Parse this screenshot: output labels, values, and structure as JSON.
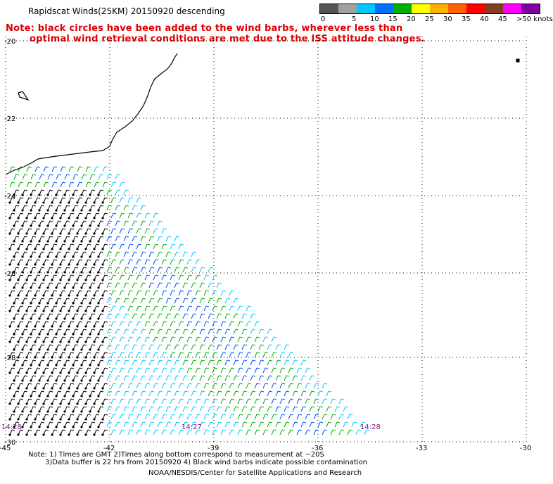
{
  "header": {
    "title": "Rapidscat Winds(25KM) 20150920 descending",
    "note_line1": "Note: black circles have been added to the wind barbs, wherever less than",
    "note_line2": "optimal wind retrieval conditions are met due to the ISS attitude changes."
  },
  "legend": {
    "colors": [
      "#555555",
      "#a0a0a0",
      "#00c8ff",
      "#0070ff",
      "#00b000",
      "#ffff00",
      "#ffb000",
      "#ff6000",
      "#ff0000",
      "#804020",
      "#ff00ff",
      "#8000a0"
    ],
    "labels": [
      "0",
      "5",
      "10",
      "15",
      "20",
      "25",
      "30",
      "35",
      "40",
      "45",
      ">50 knots"
    ]
  },
  "axes": {
    "lon_ticks": [
      "-45",
      "-42",
      "-39",
      "-36",
      "-33",
      "-30"
    ],
    "lat_ticks": [
      "-20",
      "-22",
      "-24",
      "-26",
      "-28",
      "-30"
    ]
  },
  "time_labels": [
    "14:28",
    "14:27",
    "14:28"
  ],
  "footer": {
    "line1": "Note: 1) Times are GMT 2)Times along bottom correspond to measurement at ~20S",
    "line2": "3)Data buffer is 22 hrs from 20150920 4) Black wind barbs indicate possible contamination",
    "line3": "NOAA/NESDIS/Center for Satellite Applications and Research"
  }
}
